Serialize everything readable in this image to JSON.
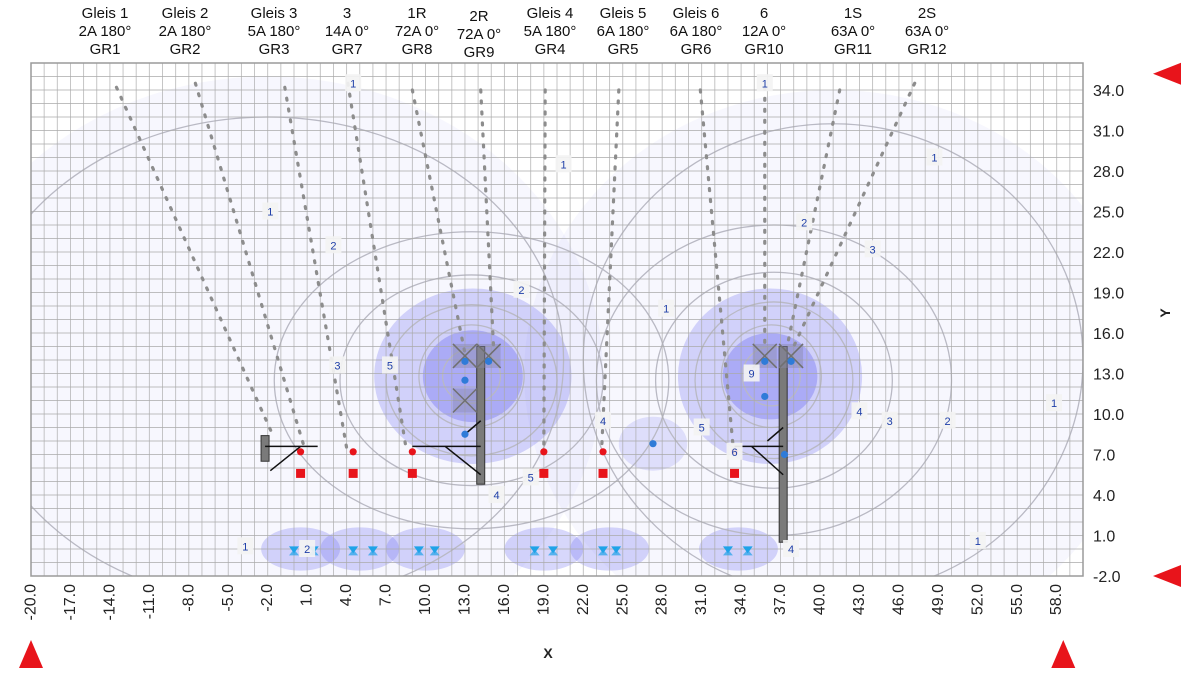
{
  "header_columns": [
    {
      "line1": "Gleis 1",
      "line2": "2A 180°",
      "line3": "GR1"
    },
    {
      "line1": "Gleis 2",
      "line2": "2A 180°",
      "line3": "GR2"
    },
    {
      "line1": "Gleis 3",
      "line2": "5A 180°",
      "line3": "GR3"
    },
    {
      "line1": "3",
      "line2": "14A 0°",
      "line3": "GR7"
    },
    {
      "line1": "1R",
      "line2": "72A 0°",
      "line3": "GR8"
    },
    {
      "line1": "2R",
      "line2": "72A 0°",
      "line3": "GR9"
    },
    {
      "line1": "Gleis 4",
      "line2": "5A 180°",
      "line3": "GR4"
    },
    {
      "line1": "Gleis 5",
      "line2": "6A 180°",
      "line3": "GR5"
    },
    {
      "line1": "Gleis 6",
      "line2": "6A 180°",
      "line3": "GR6"
    },
    {
      "line1": "6",
      "line2": "12A 0°",
      "line3": "GR10"
    },
    {
      "line1": "1S",
      "line2": "63A 0°",
      "line3": "GR11"
    },
    {
      "line1": "2S",
      "line2": "63A 0°",
      "line3": "GR12"
    }
  ],
  "chart_data": {
    "type": "contour",
    "xlabel": "X",
    "ylabel": "Y",
    "xlim": [
      -20,
      60
    ],
    "ylim": [
      -2,
      36
    ],
    "x_ticks": [
      "-20.0",
      "-17.0",
      "-14.0",
      "-11.0",
      "-8.0",
      "-5.0",
      "-2.0",
      "1.0",
      "4.0",
      "7.0",
      "10.0",
      "13.0",
      "16.0",
      "19.0",
      "22.0",
      "25.0",
      "28.0",
      "31.0",
      "34.0",
      "37.0",
      "40.0",
      "43.0",
      "46.0",
      "49.0",
      "52.0",
      "55.0",
      "58.0"
    ],
    "y_ticks": [
      "-2.0",
      "1.0",
      "4.0",
      "7.0",
      "10.0",
      "13.0",
      "16.0",
      "19.0",
      "22.0",
      "25.0",
      "28.0",
      "31.0",
      "34.0"
    ],
    "x_tick_values": [
      -20,
      -17,
      -14,
      -11,
      -8,
      -5,
      -2,
      1,
      4,
      7,
      10,
      13,
      16,
      19,
      22,
      25,
      28,
      31,
      34,
      37,
      40,
      43,
      46,
      49,
      52,
      55,
      58
    ],
    "y_tick_values": [
      -2,
      1,
      4,
      7,
      10,
      13,
      16,
      19,
      22,
      25,
      28,
      31,
      34
    ],
    "grid_step": 1,
    "contour_labels": [
      {
        "text": "1",
        "x": -1.8,
        "y": 25.0
      },
      {
        "text": "1",
        "x": 4.5,
        "y": 34.5
      },
      {
        "text": "1",
        "x": 20.5,
        "y": 28.5
      },
      {
        "text": "1",
        "x": 28.3,
        "y": 17.8
      },
      {
        "text": "1",
        "x": 35.8,
        "y": 34.5
      },
      {
        "text": "1",
        "x": 48.7,
        "y": 29.0
      },
      {
        "text": "1",
        "x": 57.8,
        "y": 10.8
      },
      {
        "text": "1",
        "x": 52.0,
        "y": 0.6
      },
      {
        "text": "1",
        "x": -3.7,
        "y": 0.2
      },
      {
        "text": "2",
        "x": 3.0,
        "y": 22.5
      },
      {
        "text": "2",
        "x": 17.3,
        "y": 19.2
      },
      {
        "text": "2",
        "x": 38.8,
        "y": 24.2
      },
      {
        "text": "2",
        "x": 49.7,
        "y": 9.5
      },
      {
        "text": "2",
        "x": 1.0,
        "y": 0.0
      },
      {
        "text": "3",
        "x": 3.3,
        "y": 13.6
      },
      {
        "text": "3",
        "x": 44.0,
        "y": 22.2
      },
      {
        "text": "3",
        "x": 45.3,
        "y": 9.5
      },
      {
        "text": "4",
        "x": 23.5,
        "y": 9.5
      },
      {
        "text": "4",
        "x": 15.4,
        "y": 4.0
      },
      {
        "text": "4",
        "x": 43.0,
        "y": 10.2
      },
      {
        "text": "4",
        "x": 37.8,
        "y": 0.0
      },
      {
        "text": "5",
        "x": 7.3,
        "y": 13.6
      },
      {
        "text": "5",
        "x": 18.0,
        "y": 5.3
      },
      {
        "text": "5",
        "x": 31.0,
        "y": 9.0
      },
      {
        "text": "6",
        "x": 33.5,
        "y": 7.2
      },
      {
        "text": "9",
        "x": 34.8,
        "y": 13.0
      }
    ],
    "guide_lines": [
      {
        "x0": -13.5,
        "y0": 34.2,
        "x1": -1.5,
        "y1": 8.2
      },
      {
        "x0": -7.5,
        "y0": 34.5,
        "x1": 0.7,
        "y1": 7.8
      },
      {
        "x0": -0.7,
        "y0": 34.2,
        "x1": 4.0,
        "y1": 7.5
      },
      {
        "x0": 4.1,
        "y0": 34.5,
        "x1": 8.5,
        "y1": 7.6
      },
      {
        "x0": 9.0,
        "y0": 34.0,
        "x1": 13.0,
        "y1": 14.5
      },
      {
        "x0": 14.2,
        "y0": 34.0,
        "x1": 15.2,
        "y1": 14.5
      },
      {
        "x0": 19.1,
        "y0": 34.0,
        "x1": 19.0,
        "y1": 7.5
      },
      {
        "x0": 24.7,
        "y0": 34.0,
        "x1": 23.4,
        "y1": 7.5
      },
      {
        "x0": 30.9,
        "y0": 34.0,
        "x1": 33.4,
        "y1": 7.5
      },
      {
        "x0": 35.8,
        "y0": 34.2,
        "x1": 35.8,
        "y1": 15.0
      },
      {
        "x0": 41.5,
        "y0": 34.0,
        "x1": 37.5,
        "y1": 15.0
      },
      {
        "x0": 47.2,
        "y0": 34.5,
        "x1": 38.0,
        "y1": 15.0
      }
    ],
    "red_circles": [
      {
        "x": 0.5,
        "y": 7.2
      },
      {
        "x": 4.5,
        "y": 7.2
      },
      {
        "x": 9.0,
        "y": 7.2
      },
      {
        "x": 19.0,
        "y": 7.2
      },
      {
        "x": 23.5,
        "y": 7.2
      },
      {
        "x": 33.5,
        "y": 7.2
      }
    ],
    "red_squares": [
      {
        "x": 0.5,
        "y": 5.6
      },
      {
        "x": 4.5,
        "y": 5.6
      },
      {
        "x": 9.0,
        "y": 5.6
      },
      {
        "x": 19.0,
        "y": 5.6
      },
      {
        "x": 23.5,
        "y": 5.6
      },
      {
        "x": 33.5,
        "y": 5.6
      }
    ],
    "blue_points": [
      {
        "x": 13.0,
        "y": 13.9
      },
      {
        "x": 14.8,
        "y": 13.9
      },
      {
        "x": 13.0,
        "y": 12.5
      },
      {
        "x": 13.0,
        "y": 8.5
      },
      {
        "x": 27.3,
        "y": 7.8
      },
      {
        "x": 35.8,
        "y": 13.9
      },
      {
        "x": 37.8,
        "y": 13.9
      },
      {
        "x": 35.8,
        "y": 11.3
      },
      {
        "x": 37.3,
        "y": 7.0
      }
    ],
    "bottom_markers_x": [
      0.0,
      1.5,
      4.5,
      6.0,
      9.5,
      10.7,
      18.3,
      19.7,
      23.5,
      24.5,
      33.0,
      34.5
    ],
    "bottom_markers_y": -0.1,
    "structures": [
      {
        "kind": "mast",
        "x": 14.2,
        "y0": 4.8,
        "y1": 15.0
      },
      {
        "kind": "mast",
        "x": 37.2,
        "y0": 0.5,
        "y1": 15.0
      },
      {
        "kind": "mast",
        "x": -2.2,
        "y0": 6.5,
        "y1": 8.4
      }
    ],
    "range_markers": [
      {
        "side": "right",
        "y": 35.2
      },
      {
        "side": "right",
        "y": -2.0
      },
      {
        "side": "bottom",
        "x": -20.0
      },
      {
        "side": "bottom",
        "x": 58.5
      }
    ],
    "field_hotspots": [
      {
        "x": -2.0,
        "y": 13.0,
        "rx": 25.5,
        "ry": 22.0,
        "opacity": 0.06
      },
      {
        "x": 41.0,
        "y": 13.0,
        "rx": 23.5,
        "ry": 21.0,
        "opacity": 0.06
      },
      {
        "x": 13.6,
        "y": 12.8,
        "rx": 7.5,
        "ry": 6.5,
        "opacity": 0.28
      },
      {
        "x": 13.6,
        "y": 12.8,
        "rx": 3.8,
        "ry": 3.4,
        "opacity": 0.38
      },
      {
        "x": 36.2,
        "y": 12.8,
        "rx": 7.0,
        "ry": 6.5,
        "opacity": 0.28
      },
      {
        "x": 36.2,
        "y": 12.8,
        "rx": 3.6,
        "ry": 3.2,
        "opacity": 0.38
      },
      {
        "x": 27.3,
        "y": 7.8,
        "rx": 2.6,
        "ry": 2.0,
        "opacity": 0.18
      },
      {
        "x": 0.5,
        "y": 0.0,
        "rx": 3.0,
        "ry": 1.6,
        "opacity": 0.28
      },
      {
        "x": 5.0,
        "y": 0.0,
        "rx": 3.0,
        "ry": 1.6,
        "opacity": 0.28
      },
      {
        "x": 10.0,
        "y": 0.0,
        "rx": 3.0,
        "ry": 1.6,
        "opacity": 0.28
      },
      {
        "x": 19.0,
        "y": 0.0,
        "rx": 3.0,
        "ry": 1.6,
        "opacity": 0.28
      },
      {
        "x": 24.0,
        "y": 0.0,
        "rx": 3.0,
        "ry": 1.6,
        "opacity": 0.28
      },
      {
        "x": 33.8,
        "y": 0.0,
        "rx": 3.0,
        "ry": 1.6,
        "opacity": 0.28
      }
    ],
    "contours": [
      {
        "x": -2.0,
        "y": 14.0,
        "rx": 22.5,
        "ry": 18.0
      },
      {
        "x": 41.0,
        "y": 14.0,
        "rx": 19.0,
        "ry": 17.5
      },
      {
        "x": 13.5,
        "y": 12.5,
        "rx": 15.0,
        "ry": 11.0
      },
      {
        "x": 36.5,
        "y": 12.5,
        "rx": 13.5,
        "ry": 11.5
      },
      {
        "x": 13.5,
        "y": 12.5,
        "rx": 10.0,
        "ry": 7.8
      },
      {
        "x": 36.5,
        "y": 12.5,
        "rx": 9.0,
        "ry": 8.0
      },
      {
        "x": 13.5,
        "y": 12.5,
        "rx": 6.5,
        "ry": 5.6
      },
      {
        "x": 36.5,
        "y": 12.5,
        "rx": 6.0,
        "ry": 5.8
      },
      {
        "x": 13.5,
        "y": 12.8,
        "rx": 4.0,
        "ry": 3.8
      },
      {
        "x": 36.3,
        "y": 12.8,
        "rx": 3.8,
        "ry": 3.8
      },
      {
        "x": 13.5,
        "y": 12.8,
        "rx": 2.2,
        "ry": 2.0
      },
      {
        "x": 36.3,
        "y": 12.8,
        "rx": 2.2,
        "ry": 2.2
      }
    ],
    "colors": {
      "grid": "#a9a9a9",
      "field": "#6f6ff0",
      "contour": "#b9b9c4",
      "guide": "#8d8d8d",
      "red": "#e8141b",
      "blue_point": "#2f7bd8",
      "bottom_marker": "#1fa3e8",
      "structure": "#7a7a7a",
      "range_marker": "#e8141b"
    }
  }
}
